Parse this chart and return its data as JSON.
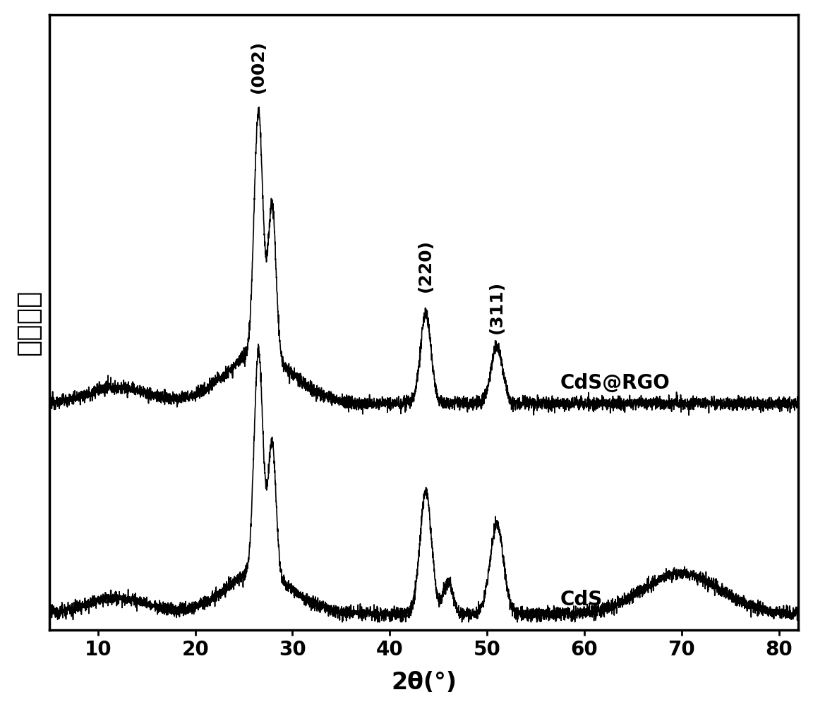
{
  "xlim": [
    5,
    82
  ],
  "xticks": [
    10,
    20,
    30,
    40,
    50,
    60,
    70,
    80
  ],
  "xlabel": "2θ(°)",
  "ylabel": "相对强度",
  "background_color": "#ffffff",
  "line_color": "#000000",
  "label_rgo": "CdS@RGO",
  "label_cds": "CdS",
  "annotation_002": "(002)",
  "annotation_220": "(220)",
  "annotation_311": "(311)",
  "linewidth": 1.2,
  "tick_fontsize": 20,
  "label_fontsize": 20,
  "annot_fontsize": 18,
  "xlabel_fontsize": 24
}
